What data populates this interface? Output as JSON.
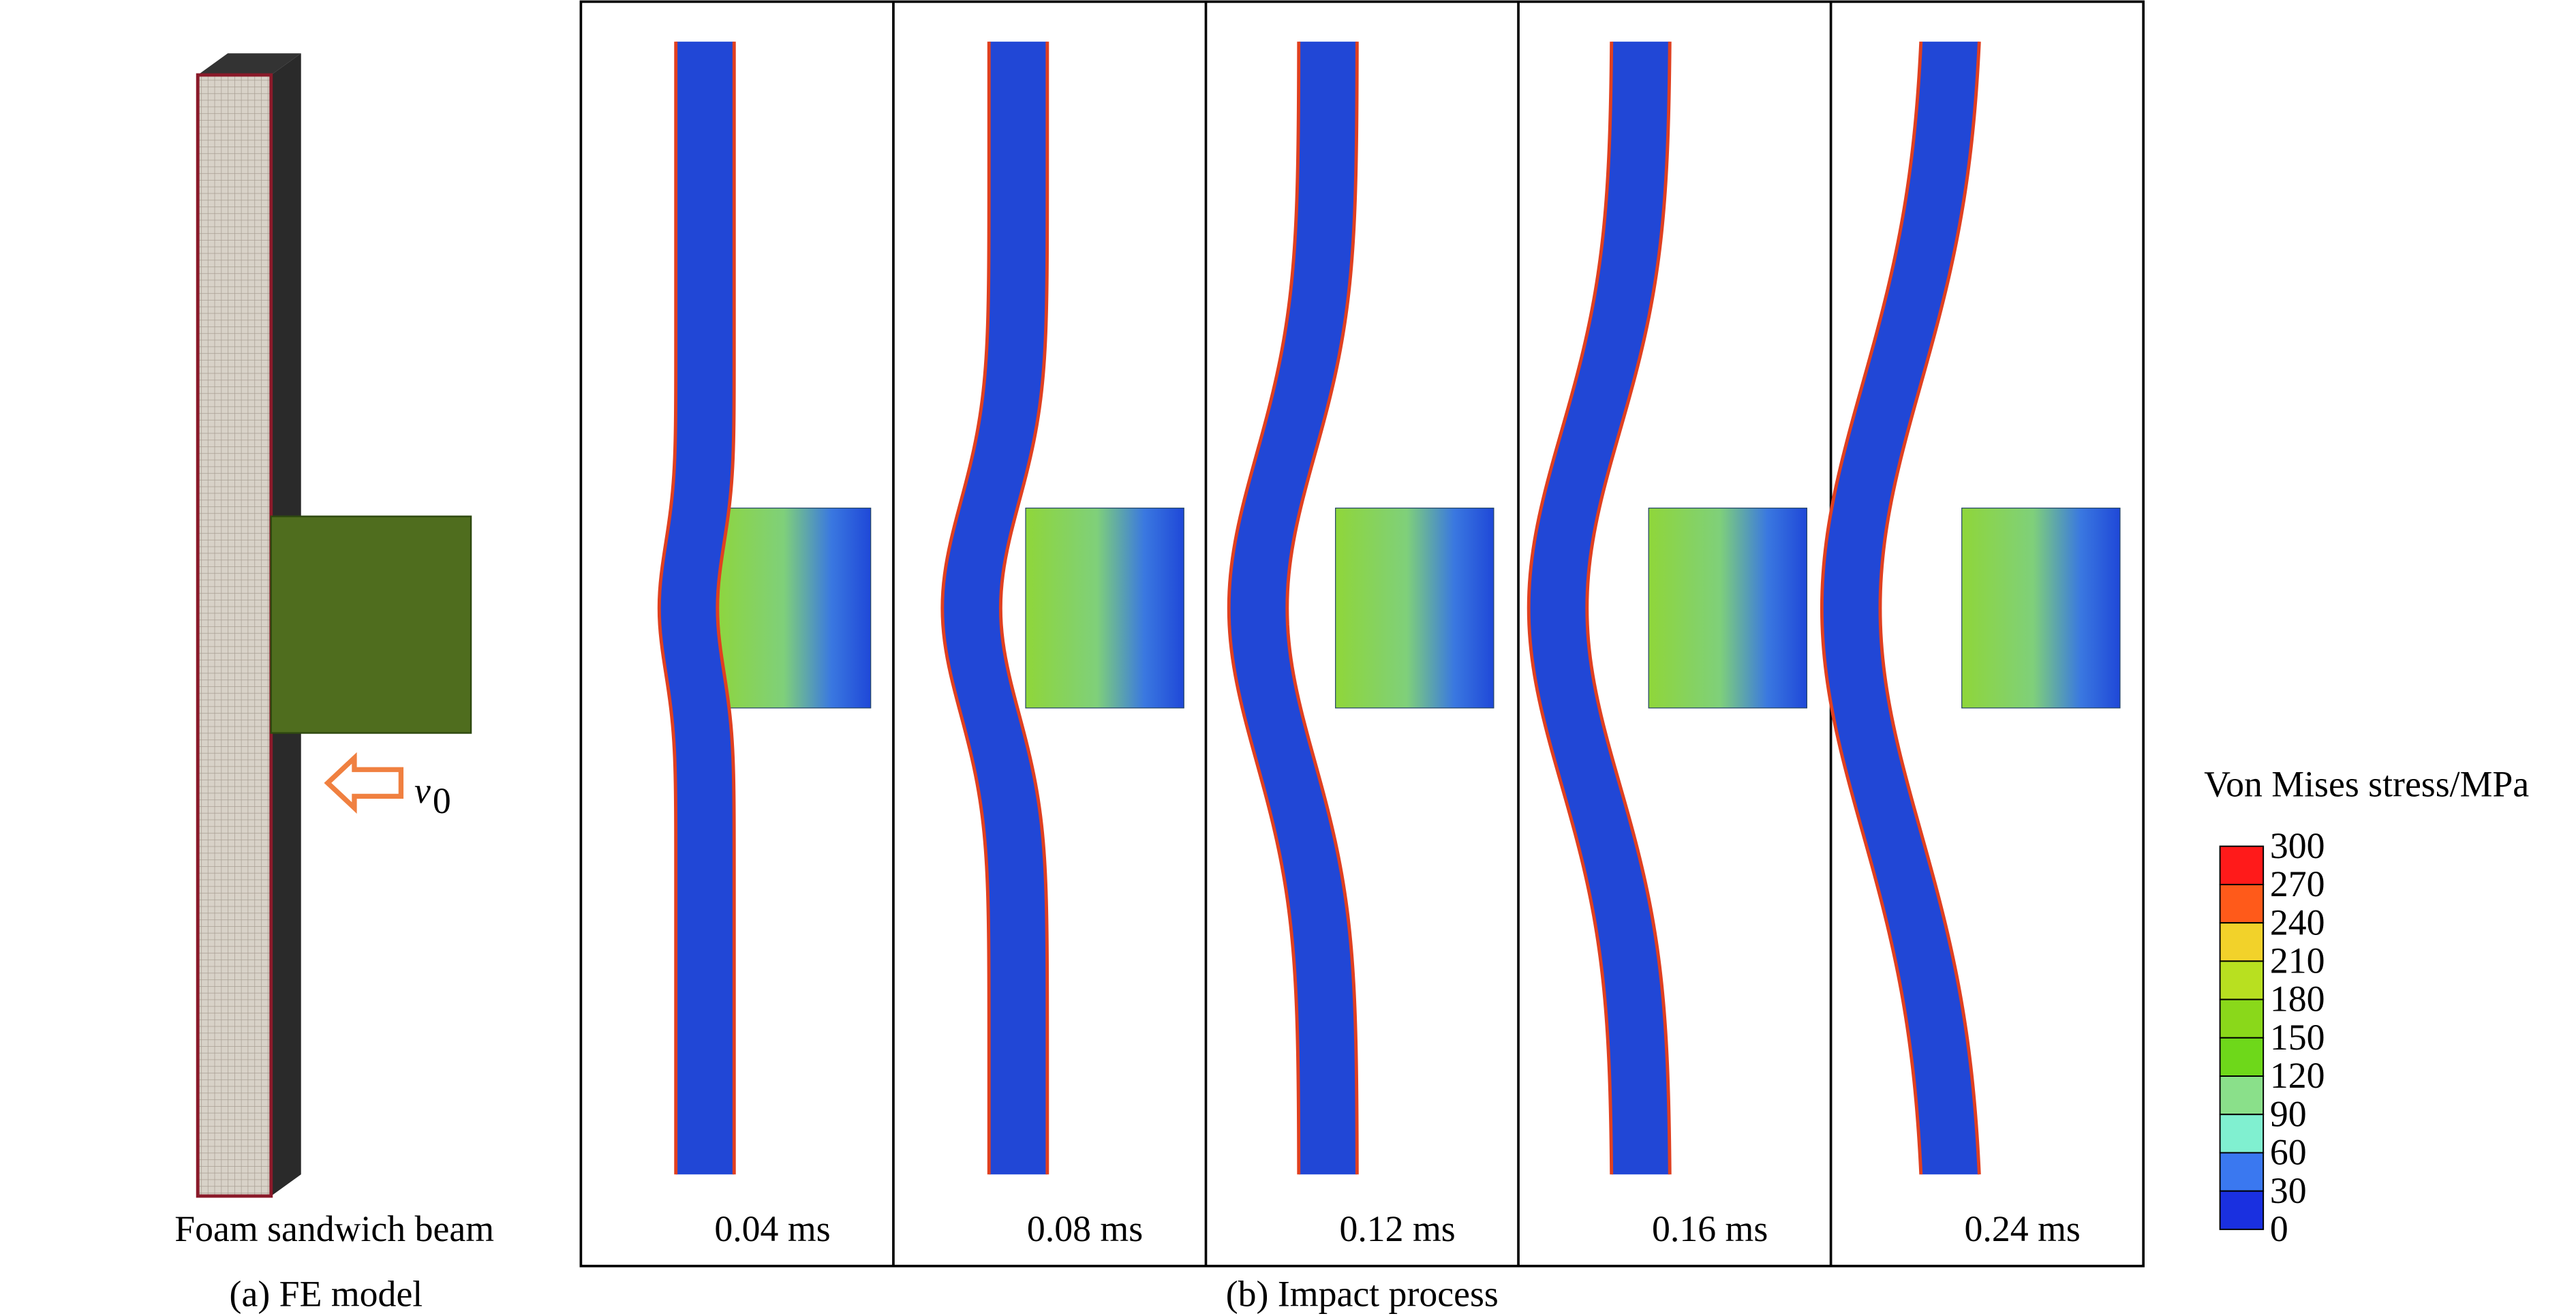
{
  "panel_a": {
    "label": "Foam sandwich beam",
    "caption": "(a) FE model",
    "velocity": "v",
    "velocity_subscript": "0"
  },
  "panel_b": {
    "caption": "(b) Impact process",
    "times": [
      "0.04 ms",
      "0.08 ms",
      "0.12 ms",
      "0.16 ms",
      "0.24 ms"
    ]
  },
  "legend": {
    "title": "Von Mises stress/MPa",
    "ticks": [
      300,
      270,
      240,
      210,
      180,
      150,
      120,
      90,
      60,
      30,
      0
    ]
  }
}
